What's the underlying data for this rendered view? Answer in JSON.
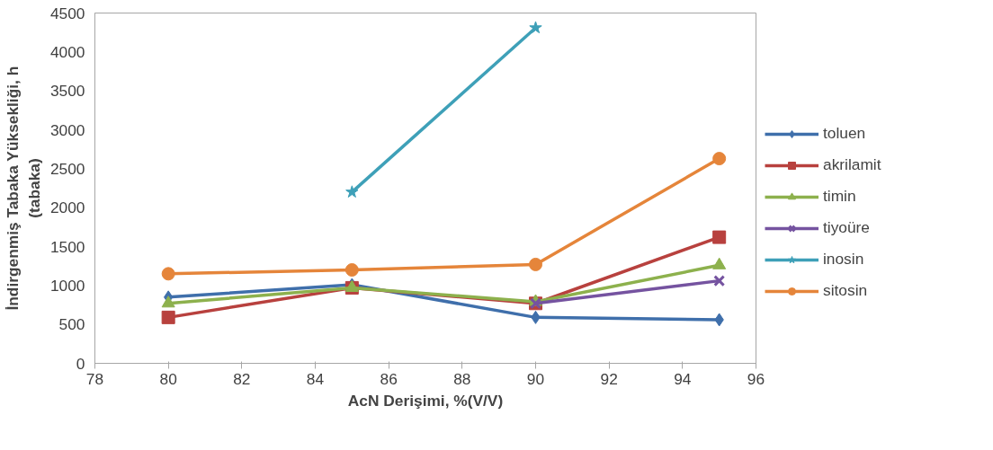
{
  "chart_data": {
    "type": "line",
    "xlabel": "AcN Derişimi, %(V/V)",
    "ylabel": "İndirgenmiş Tabaka Yüksekliği, h\n(tabaka)",
    "x": [
      80,
      85,
      90,
      95
    ],
    "xlim": [
      78,
      96
    ],
    "xticks": [
      78,
      80,
      82,
      84,
      86,
      88,
      90,
      92,
      94,
      96
    ],
    "ylim": [
      0,
      4500
    ],
    "yticks": [
      0,
      500,
      1000,
      1500,
      2000,
      2500,
      3000,
      3500,
      4000,
      4500
    ],
    "grid": false,
    "legend": "right",
    "line_style": "solid",
    "series": [
      {
        "name": "toluen",
        "color": "#3f6fab",
        "marker": "diamond",
        "values": [
          850,
          1010,
          590,
          560
        ]
      },
      {
        "name": "akrilamit",
        "color": "#b8413e",
        "marker": "square",
        "values": [
          590,
          970,
          770,
          1620
        ]
      },
      {
        "name": "timin",
        "color": "#8db14d",
        "marker": "triangle",
        "values": [
          770,
          970,
          790,
          1260
        ]
      },
      {
        "name": "tiyoüre",
        "color": "#7553a0",
        "marker": "cross",
        "values": [
          null,
          null,
          770,
          1060
        ]
      },
      {
        "name": "inosin",
        "color": "#3ea0b8",
        "marker": "star",
        "values": [
          null,
          2200,
          4310,
          null
        ]
      },
      {
        "name": "sitosin",
        "color": "#e5853a",
        "marker": "circle",
        "values": [
          1150,
          1200,
          1270,
          2630
        ]
      }
    ]
  }
}
